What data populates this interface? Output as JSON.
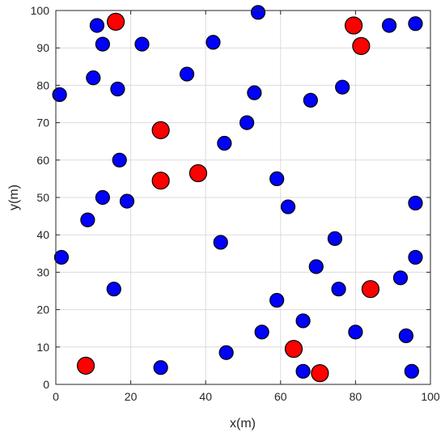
{
  "chart_data": {
    "type": "scatter",
    "xlabel": "x(m)",
    "ylabel": "y(m)",
    "xlim": [
      0,
      100
    ],
    "ylim": [
      0,
      100
    ],
    "xticks": [
      0,
      20,
      40,
      60,
      80,
      100
    ],
    "yticks": [
      0,
      10,
      20,
      30,
      40,
      50,
      60,
      70,
      80,
      90,
      100
    ],
    "grid": true,
    "series": [
      {
        "color": "#0000ff",
        "marker": "circle-small",
        "points": [
          [
            11,
            96
          ],
          [
            12.5,
            91
          ],
          [
            23,
            91
          ],
          [
            42,
            91.5
          ],
          [
            54,
            99.5
          ],
          [
            89,
            96
          ],
          [
            96,
            96.5
          ],
          [
            10,
            82
          ],
          [
            16.5,
            79
          ],
          [
            35,
            83
          ],
          [
            1,
            77.5
          ],
          [
            53,
            78
          ],
          [
            68,
            76
          ],
          [
            76.5,
            79.5
          ],
          [
            51,
            70
          ],
          [
            45,
            64.5
          ],
          [
            17,
            60
          ],
          [
            12.5,
            50
          ],
          [
            19,
            49
          ],
          [
            8.5,
            44
          ],
          [
            59,
            55
          ],
          [
            62,
            47.5
          ],
          [
            96,
            48.5
          ],
          [
            44,
            38
          ],
          [
            74.5,
            39
          ],
          [
            1.5,
            34
          ],
          [
            69.5,
            31.5
          ],
          [
            96,
            34
          ],
          [
            75.5,
            25.5
          ],
          [
            92,
            28.5
          ],
          [
            15.5,
            25.5
          ],
          [
            59,
            22.5
          ],
          [
            66,
            17
          ],
          [
            55,
            14
          ],
          [
            80,
            14
          ],
          [
            93.5,
            13
          ],
          [
            45.5,
            8.5
          ],
          [
            28,
            4.5
          ],
          [
            66,
            3.5
          ],
          [
            95,
            3.5
          ]
        ]
      },
      {
        "color": "#ff0000",
        "marker": "circle-large",
        "points": [
          [
            16,
            97
          ],
          [
            79.5,
            96
          ],
          [
            81.5,
            90.5
          ],
          [
            28,
            68
          ],
          [
            28,
            54.5
          ],
          [
            38,
            56.5
          ],
          [
            84,
            25.5
          ],
          [
            63.5,
            9.5
          ],
          [
            8,
            5
          ],
          [
            70.5,
            3
          ]
        ]
      }
    ]
  }
}
